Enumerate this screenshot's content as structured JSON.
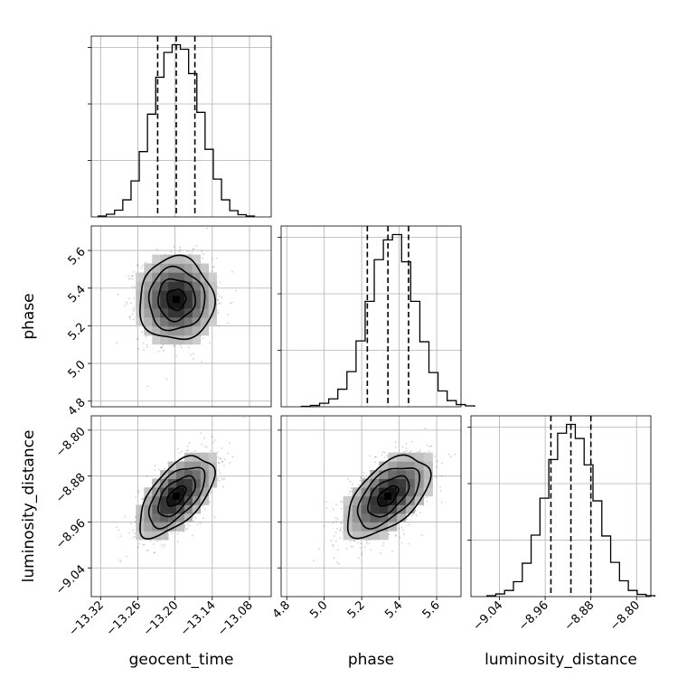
{
  "chart_data": {
    "type": "corner",
    "parameters": [
      {
        "key": "geocent_time",
        "label": "geocent_time",
        "median": -13.198,
        "q16": -13.228,
        "q84": -13.168,
        "sigma": 0.03,
        "range": [
          -13.335,
          -13.045
        ],
        "ticks": [
          -13.32,
          -13.26,
          -13.2,
          -13.14,
          -13.08
        ],
        "tick_labels": [
          "−13.32",
          "−13.26",
          "−13.20",
          "−13.14",
          "−13.08"
        ]
      },
      {
        "key": "phase",
        "label": "phase",
        "median": 5.34,
        "q16": 5.23,
        "q84": 5.45,
        "sigma": 0.11,
        "range": [
          4.77,
          5.73
        ],
        "ticks": [
          4.8,
          5.0,
          5.2,
          5.4,
          5.6
        ],
        "tick_labels": [
          "4.8",
          "5.0",
          "5.2",
          "5.4",
          "5.6"
        ]
      },
      {
        "key": "luminosity_distance",
        "label": "luminosity_distance",
        "median": -8.915,
        "q16": -8.95,
        "q84": -8.88,
        "sigma": 0.035,
        "range": [
          -9.09,
          -8.775
        ],
        "ticks": [
          -9.04,
          -8.96,
          -8.88,
          -8.8
        ],
        "tick_labels": [
          "−9.04",
          "−8.96",
          "−8.88",
          "−8.80"
        ]
      }
    ],
    "histograms": {
      "geocent_time": [
        2,
        6,
        15,
        38,
        80,
        145,
        228,
        310,
        365,
        382,
        372,
        318,
        232,
        150,
        84,
        38,
        14,
        5,
        2
      ],
      "phase": [
        1,
        3,
        8,
        18,
        40,
        80,
        150,
        240,
        335,
        380,
        392,
        330,
        240,
        148,
        78,
        36,
        14,
        5,
        2
      ],
      "luminosity_distance": [
        2,
        6,
        14,
        34,
        76,
        140,
        224,
        312,
        372,
        392,
        360,
        300,
        218,
        138,
        78,
        36,
        14,
        5,
        2
      ]
    },
    "correlations": {
      "geocent_time|phase": 0.0,
      "geocent_time|luminosity_distance": 0.6,
      "phase|luminosity_distance": 0.55
    },
    "contour_levels_sigma": [
      0.5,
      1.0,
      1.5,
      2.0
    ],
    "quantiles": [
      0.16,
      0.5,
      0.84
    ],
    "grid": true
  }
}
